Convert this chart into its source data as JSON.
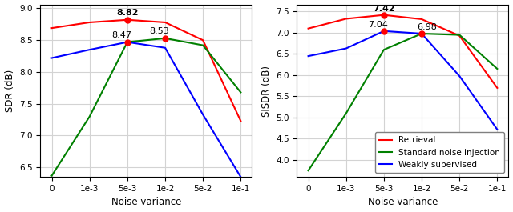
{
  "x_tick_labels": [
    "0",
    "1e-3",
    "5e-3",
    "1e-2",
    "5e-2",
    "1e-1"
  ],
  "left": {
    "ylabel": "SDR (dB)",
    "xlabel": "Noise variance",
    "ylim": [
      6.35,
      9.05
    ],
    "yticks": [
      6.5,
      7.0,
      7.5,
      8.0,
      8.5,
      9.0
    ],
    "retrieval": {
      "y": [
        8.69,
        8.78,
        8.82,
        8.78,
        8.5,
        7.23
      ],
      "color": "red",
      "peak_idx": 2,
      "peak_label": "8.82",
      "peak_bold": true
    },
    "standard": {
      "y": [
        6.37,
        7.3,
        8.47,
        8.53,
        8.42,
        7.68
      ],
      "color": "green",
      "peak_idx": 3,
      "peak_label": "8.53",
      "peak_bold": false
    },
    "weakly": {
      "y": [
        8.22,
        8.35,
        8.47,
        8.38,
        7.33,
        6.35
      ],
      "color": "blue",
      "peak_idx": 2,
      "peak_label": "8.47",
      "peak_bold": false
    }
  },
  "right": {
    "ylabel": "SISDR (dB)",
    "xlabel": "Noise variance",
    "ylim": [
      3.6,
      7.65
    ],
    "yticks": [
      4.0,
      4.5,
      5.0,
      5.5,
      6.0,
      6.5,
      7.0,
      7.5
    ],
    "retrieval": {
      "y": [
        7.1,
        7.33,
        7.42,
        7.32,
        6.93,
        5.7
      ],
      "color": "red",
      "peak_idx": 2,
      "peak_label": "7.42",
      "peak_bold": true
    },
    "standard": {
      "y": [
        3.75,
        5.1,
        6.6,
        6.98,
        6.95,
        6.15
      ],
      "color": "green",
      "peak_idx": 3,
      "peak_label": "6.98",
      "peak_bold": false
    },
    "weakly": {
      "y": [
        6.45,
        6.63,
        7.04,
        6.98,
        5.98,
        4.72
      ],
      "color": "blue",
      "peak_idx": 2,
      "peak_label": "7.04",
      "peak_bold": false
    }
  },
  "legend": {
    "retrieval": "Retrieval",
    "standard": "Standard noise injection",
    "weakly": "Weakly supervised"
  },
  "annotation_offsets": {
    "left": {
      "retrieval": [
        0,
        0.05
      ],
      "standard": [
        0,
        0.05
      ],
      "weakly": [
        0,
        0.05
      ]
    },
    "right": {
      "retrieval": [
        0,
        0.05
      ],
      "standard": [
        0,
        0.05
      ],
      "weakly": [
        0,
        0.05
      ]
    }
  }
}
